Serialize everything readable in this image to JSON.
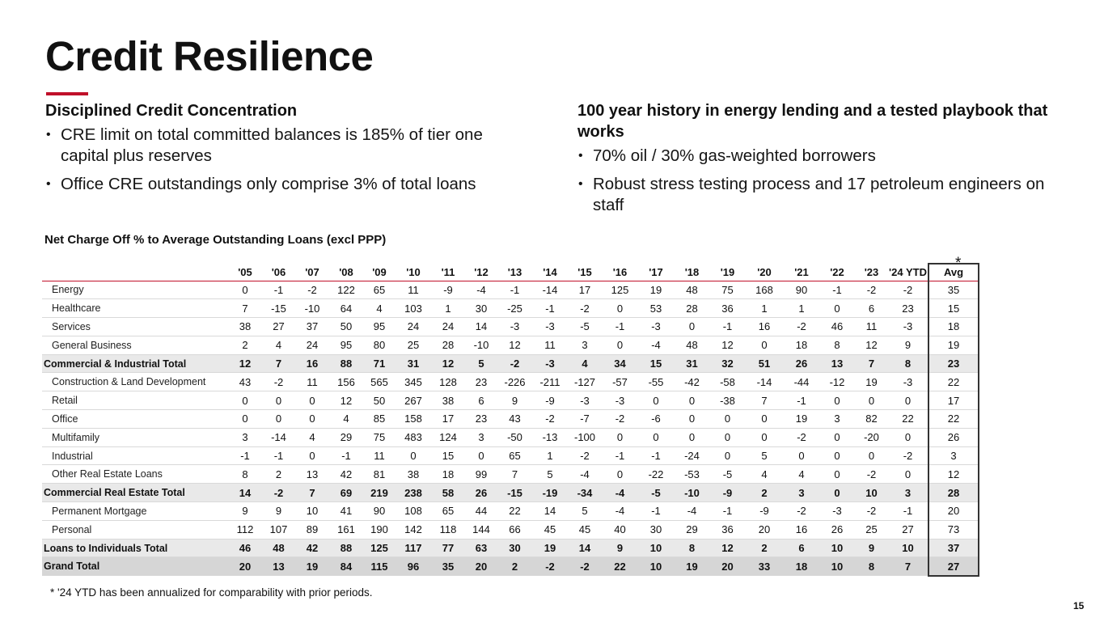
{
  "title": "Credit Resilience",
  "colors": {
    "accent": "#c0102a",
    "total_row": "#e9e9e9",
    "grand_row": "#d6d6d6"
  },
  "left": {
    "heading": "Disciplined Credit Concentration",
    "bullets": [
      "CRE limit on total committed balances is 185% of tier one capital plus reserves",
      "Office CRE outstandings only comprise 3% of total loans"
    ]
  },
  "right": {
    "heading": "100 year history in energy lending and a tested playbook that works",
    "bullets": [
      "70% oil / 30% gas-weighted borrowers",
      "Robust stress testing process and 17 petroleum engineers on staff"
    ]
  },
  "table": {
    "title": "Net Charge Off % to Average Outstanding Loans (excl PPP)",
    "asterisk": "*",
    "columns": [
      "'05",
      "'06",
      "'07",
      "'08",
      "'09",
      "'10",
      "'11",
      "'12",
      "'13",
      "'14",
      "'15",
      "'16",
      "'17",
      "'18",
      "'19",
      "'20",
      "'21",
      "'22",
      "'23",
      "'24 YTD",
      "Avg"
    ],
    "rows": [
      {
        "label": "Energy",
        "type": "detail",
        "values": [
          0,
          -1,
          -2,
          122,
          65,
          11,
          -9,
          -4,
          -1,
          -14,
          17,
          125,
          19,
          48,
          75,
          168,
          90,
          -1,
          -2,
          -2,
          35
        ]
      },
      {
        "label": "Healthcare",
        "type": "detail",
        "values": [
          7,
          -15,
          -10,
          64,
          4,
          103,
          1,
          30,
          -25,
          -1,
          -2,
          0,
          53,
          28,
          36,
          1,
          1,
          0,
          6,
          23,
          15
        ]
      },
      {
        "label": "Services",
        "type": "detail",
        "values": [
          38,
          27,
          37,
          50,
          95,
          24,
          24,
          14,
          -3,
          -3,
          -5,
          -1,
          -3,
          0,
          -1,
          16,
          -2,
          46,
          11,
          -3,
          18
        ]
      },
      {
        "label": "General Business",
        "type": "detail",
        "values": [
          2,
          4,
          24,
          95,
          80,
          25,
          28,
          -10,
          12,
          11,
          3,
          0,
          -4,
          48,
          12,
          0,
          18,
          8,
          12,
          9,
          19
        ]
      },
      {
        "label": "Commercial & Industrial Total",
        "type": "total",
        "values": [
          12,
          7,
          16,
          88,
          71,
          31,
          12,
          5,
          -2,
          -3,
          4,
          34,
          15,
          31,
          32,
          51,
          26,
          13,
          7,
          8,
          23
        ]
      },
      {
        "label": "Construction & Land Development",
        "type": "detail",
        "values": [
          43,
          -2,
          11,
          156,
          565,
          345,
          128,
          23,
          -226,
          -211,
          -127,
          -57,
          -55,
          -42,
          -58,
          -14,
          -44,
          -12,
          19,
          -3,
          22
        ]
      },
      {
        "label": "Retail",
        "type": "detail",
        "values": [
          0,
          0,
          0,
          12,
          50,
          267,
          38,
          6,
          9,
          -9,
          -3,
          -3,
          0,
          0,
          -38,
          7,
          -1,
          0,
          0,
          0,
          17
        ]
      },
      {
        "label": "Office",
        "type": "detail",
        "values": [
          0,
          0,
          0,
          4,
          85,
          158,
          17,
          23,
          43,
          -2,
          -7,
          -2,
          -6,
          0,
          0,
          0,
          19,
          3,
          82,
          22,
          22
        ]
      },
      {
        "label": "Multifamily",
        "type": "detail",
        "values": [
          3,
          -14,
          4,
          29,
          75,
          483,
          124,
          3,
          -50,
          -13,
          -100,
          0,
          0,
          0,
          0,
          0,
          -2,
          0,
          -20,
          0,
          26
        ]
      },
      {
        "label": "Industrial",
        "type": "detail",
        "values": [
          -1,
          -1,
          0,
          -1,
          11,
          0,
          15,
          0,
          65,
          1,
          -2,
          -1,
          -1,
          -24,
          0,
          5,
          0,
          0,
          0,
          -2,
          3
        ]
      },
      {
        "label": "Other Real Estate Loans",
        "type": "detail",
        "values": [
          8,
          2,
          13,
          42,
          81,
          38,
          18,
          99,
          7,
          5,
          -4,
          0,
          -22,
          -53,
          -5,
          4,
          4,
          0,
          -2,
          0,
          12
        ]
      },
      {
        "label": "Commercial Real Estate Total",
        "type": "total",
        "values": [
          14,
          -2,
          7,
          69,
          219,
          238,
          58,
          26,
          -15,
          -19,
          -34,
          -4,
          -5,
          -10,
          -9,
          2,
          3,
          0,
          10,
          3,
          28
        ]
      },
      {
        "label": "Permanent Mortgage",
        "type": "detail",
        "values": [
          9,
          9,
          10,
          41,
          90,
          108,
          65,
          44,
          22,
          14,
          5,
          -4,
          -1,
          -4,
          -1,
          -9,
          -2,
          -3,
          -2,
          -1,
          20
        ]
      },
      {
        "label": "Personal",
        "type": "detail",
        "values": [
          112,
          107,
          89,
          161,
          190,
          142,
          118,
          144,
          66,
          45,
          45,
          40,
          30,
          29,
          36,
          20,
          16,
          26,
          25,
          27,
          73
        ]
      },
      {
        "label": "Loans to Individuals Total",
        "type": "total",
        "values": [
          46,
          48,
          42,
          88,
          125,
          117,
          77,
          63,
          30,
          19,
          14,
          9,
          10,
          8,
          12,
          2,
          6,
          10,
          9,
          10,
          37
        ]
      },
      {
        "label": "Grand Total",
        "type": "grand",
        "values": [
          20,
          13,
          19,
          84,
          115,
          96,
          35,
          20,
          2,
          -2,
          -2,
          22,
          10,
          19,
          20,
          33,
          18,
          10,
          8,
          7,
          27
        ]
      }
    ]
  },
  "footnote": "* '24 YTD has been annualized for comparability with prior periods.",
  "page_number": "15"
}
